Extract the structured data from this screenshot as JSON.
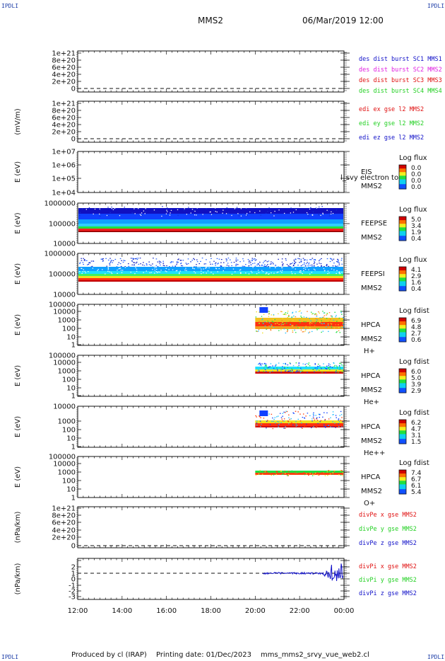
{
  "corner_label": "IPDLI",
  "header": {
    "spacecraft": "MMS2",
    "datetime": "06/Mar/2019 12:00"
  },
  "footer": {
    "produced_by": "Produced by cl (IRAP)",
    "printing_date": "Printing date: 01/Dec/2023",
    "filename": "mms_mms2_srvy_vue_web2.cl"
  },
  "colors": {
    "blue": "#1010c8",
    "green": "#22d022",
    "red": "#e01010",
    "magenta": "#e020e0",
    "dark_blue": "#0a20a0"
  },
  "chart_data": [
    {
      "type": "line",
      "name": "des dist burst",
      "ylabel": "",
      "ylim": [
        -1e+20,
        1.1e+21
      ],
      "yticks": [
        "0",
        "2e+20",
        "4e+20",
        "6e+20",
        "8e+20",
        "1e+21"
      ],
      "dashed_zero": true,
      "legend": [
        {
          "label": "des dist burst SC1 MMS1",
          "color": "#1010c8"
        },
        {
          "label": "des dist burst SC2 MMS2",
          "color": "#e020e0"
        },
        {
          "label": "des dist burst SC3 MMS3",
          "color": "#e01010"
        },
        {
          "label": "des dist burst SC4 MMS4",
          "color": "#22d022"
        }
      ]
    },
    {
      "type": "line",
      "name": "edi e gse",
      "ylabel": "(mV/m)",
      "ylim": [
        -1e+20,
        1.1e+21
      ],
      "yticks": [
        "0",
        "2e+20",
        "4e+20",
        "6e+20",
        "8e+20",
        "1e+21"
      ],
      "dashed_zero": true,
      "legend": [
        {
          "label": "edi ex gse l2 MMS2",
          "color": "#e01010"
        },
        {
          "label": "edi ey gse l2 MMS2",
          "color": "#22d022"
        },
        {
          "label": "edi ez gse l2 MMS2",
          "color": "#1010c8"
        }
      ]
    },
    {
      "type": "heatmap",
      "name": "EIS",
      "ylabel": "E (eV)",
      "yticks": [
        "1e+04",
        "1e+05",
        "1e+06",
        "1e+07"
      ],
      "instrument": "EIS",
      "spacecraft": "MMS2",
      "overlay_text": "l_svy electron to",
      "colorbar_title": "Log flux",
      "colorbar_ticks": [
        "0.0",
        "0.0",
        "0.0",
        "0.0"
      ]
    },
    {
      "type": "heatmap",
      "name": "FEEPS electrons",
      "ylabel": "E (eV)",
      "yticks": [
        "10000",
        "100000",
        "1000000"
      ],
      "instrument": "FEEPSE",
      "spacecraft": "MMS2",
      "coverage": [
        "12:00",
        "00:00"
      ],
      "colorbar_title": "Log flux",
      "colorbar_ticks": [
        "5.0",
        "3.4",
        "1.9",
        "0.4"
      ]
    },
    {
      "type": "heatmap",
      "name": "FEEPS ions",
      "ylabel": "E (eV)",
      "yticks": [
        "10000",
        "100000",
        "1000000"
      ],
      "instrument": "FEEPSI",
      "spacecraft": "MMS2",
      "coverage": [
        "12:00",
        "00:00"
      ],
      "colorbar_title": "Log flux",
      "colorbar_ticks": [
        "4.1",
        "2.9",
        "1.6",
        "0.4"
      ]
    },
    {
      "type": "heatmap",
      "name": "HPCA H+",
      "ylabel": "E (eV)",
      "yticks": [
        "1",
        "10",
        "100",
        "1000",
        "10000",
        "100000"
      ],
      "instrument": "HPCA",
      "spacecraft": "MMS2",
      "species": "H+",
      "coverage": [
        "20:00",
        "00:00"
      ],
      "colorbar_title": "Log fdist",
      "colorbar_ticks": [
        "6.9",
        "4.8",
        "2.7",
        "0.6"
      ]
    },
    {
      "type": "heatmap",
      "name": "HPCA He+",
      "ylabel": "E (eV)",
      "yticks": [
        "1",
        "10",
        "100",
        "1000",
        "10000",
        "100000"
      ],
      "instrument": "HPCA",
      "spacecraft": "MMS2",
      "species": "He+",
      "coverage": [
        "20:00",
        "00:00"
      ],
      "colorbar_title": "Log fdist",
      "colorbar_ticks": [
        "6.0",
        "5.0",
        "3.9",
        "2.9"
      ]
    },
    {
      "type": "heatmap",
      "name": "HPCA He++",
      "ylabel": "E (eV)",
      "yticks": [
        "1",
        "10",
        "100",
        "1000",
        "10000"
      ],
      "instrument": "HPCA",
      "spacecraft": "MMS2",
      "species": "He++",
      "coverage": [
        "20:00",
        "00:00"
      ],
      "colorbar_title": "Log fdist",
      "colorbar_ticks": [
        "6.2",
        "4.7",
        "3.1",
        "1.5"
      ]
    },
    {
      "type": "heatmap",
      "name": "HPCA O+",
      "ylabel": "E (eV)",
      "yticks": [
        "1",
        "10",
        "100",
        "1000",
        "10000",
        "100000"
      ],
      "instrument": "HPCA",
      "spacecraft": "MMS2",
      "species": "O+",
      "coverage": [
        "20:00",
        "00:00"
      ],
      "colorbar_title": "Log fdist",
      "colorbar_ticks": [
        "7.4",
        "6.7",
        "6.1",
        "5.4"
      ]
    },
    {
      "type": "line",
      "name": "divPe gse",
      "ylabel": "(nPa/km)",
      "ylim": [
        -1e+20,
        1.1e+21
      ],
      "yticks": [
        "0",
        "2e+20",
        "4e+20",
        "6e+20",
        "8e+20",
        "1e+21"
      ],
      "dashed_zero": true,
      "legend": [
        {
          "label": "divPe x gse MMS2",
          "color": "#e01010"
        },
        {
          "label": "divPe y gse MMS2",
          "color": "#22d022"
        },
        {
          "label": "divPe z gse MMS2",
          "color": "#1010c8"
        }
      ]
    },
    {
      "type": "line",
      "name": "divPi gse",
      "ylabel": "(nPa/km)",
      "ylim": [
        -3.5,
        2.2
      ],
      "yticks": [
        "-3",
        "-2",
        "-1",
        "0",
        "1",
        "2"
      ],
      "dashed_zero": true,
      "series_coverage": [
        "20:20",
        "00:00"
      ],
      "legend": [
        {
          "label": "divPi x gse MMS2",
          "color": "#e01010"
        },
        {
          "label": "divPi y gse MMS2",
          "color": "#22d022"
        },
        {
          "label": "divPi z gse MMS2",
          "color": "#1010c8"
        }
      ]
    }
  ],
  "x_axis": {
    "ticks": [
      "12:00",
      "14:00",
      "16:00",
      "18:00",
      "20:00",
      "22:00",
      "00:00"
    ],
    "range_hours": [
      12,
      24
    ]
  }
}
